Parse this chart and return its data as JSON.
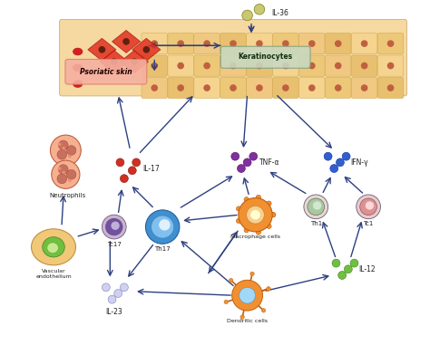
{
  "bg_color": "#ffffff",
  "skin_layer_color": "#f5deb3",
  "skin_layer_top": "#f0c080",
  "psoriatic_label": "Psoriatic skin",
  "keratinocytes_label": "Keratinocytes",
  "il36_label": "IL-36",
  "il17_label": "IL-17",
  "il23_label": "IL-23",
  "il12_label": "IL-12",
  "tnfa_label": "TNF-α",
  "ifng_label": "IFN-γ",
  "neutrophils_label": "Neutrophils",
  "tc17_label": "Tc17",
  "th17_label": "Th17",
  "th1_label": "Th1",
  "tc1_label": "Tc1",
  "macro_label": "Macrophage cells",
  "dendri_label": "Dendritic cells",
  "vasc_label": "Vascular\nendothelium",
  "arrow_color": "#2e4080",
  "title": ""
}
